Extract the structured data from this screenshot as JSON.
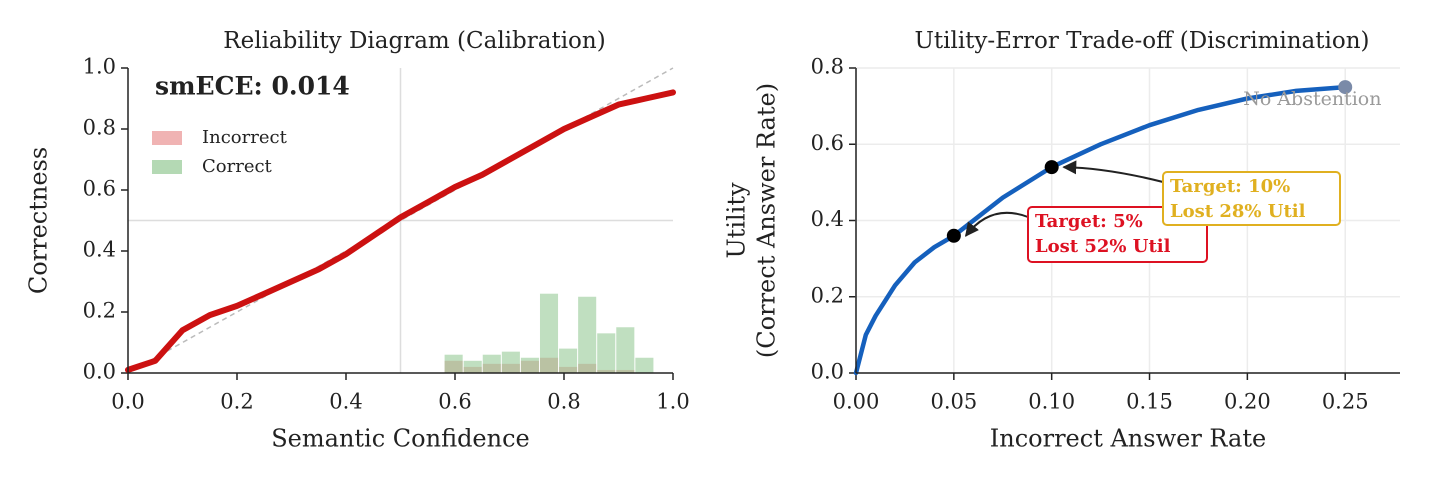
{
  "chart_data": [
    {
      "type": "line",
      "title": "Reliability Diagram (Calibration)",
      "annotation": "smECE: 0.014",
      "xlabel": "Semantic Confidence",
      "ylabel": "Correctness",
      "xlim": [
        0,
        1
      ],
      "ylim": [
        0,
        1
      ],
      "xticks": [
        {
          "value": 0,
          "label": "0.0"
        },
        0.2,
        0.4,
        0.6,
        0.8,
        {
          "value": 1,
          "label": "1.0"
        }
      ],
      "yticks": [
        {
          "value": 0,
          "label": "0.0"
        },
        0.2,
        0.4,
        0.6,
        0.8,
        {
          "value": 1,
          "label": "1.0"
        }
      ],
      "reference_x": 0.5,
      "reference_y": 0.5,
      "x": [
        0,
        0.05,
        0.1,
        0.15,
        0.2,
        0.25,
        0.3,
        0.35,
        0.4,
        0.45,
        0.5,
        0.55,
        0.6,
        0.65,
        0.7,
        0.75,
        0.8,
        0.85,
        0.9,
        0.95,
        1.0
      ],
      "series": [
        {
          "color": "#cc1111",
          "values": [
            0.01,
            0.04,
            0.14,
            0.19,
            0.22,
            0.26,
            0.3,
            0.34,
            0.39,
            0.45,
            0.51,
            0.56,
            0.61,
            0.65,
            0.7,
            0.75,
            0.8,
            0.84,
            0.88,
            0.9,
            0.92
          ]
        }
      ],
      "histogram": {
        "bins": [
          0.58,
          0.615,
          0.65,
          0.685,
          0.72,
          0.755,
          0.79,
          0.825,
          0.86,
          0.895,
          0.93,
          0.965
        ],
        "series": [
          {
            "name": "Incorrect",
            "color": "#e88a8a",
            "values": [
              0.04,
              0.02,
              0.03,
              0.03,
              0.04,
              0.05,
              0.02,
              0.03,
              0.01,
              0.01,
              0
            ]
          },
          {
            "name": "Correct",
            "color": "#8cc48c",
            "values": [
              0.06,
              0.04,
              0.06,
              0.07,
              0.05,
              0.26,
              0.08,
              0.25,
              0.13,
              0.15,
              0.05
            ]
          }
        ]
      },
      "legend": "upper left"
    },
    {
      "type": "line",
      "title": "Utility-Error Trade-off (Discrimination)",
      "xlabel": "Incorrect Answer Rate",
      "ylabel": [
        "Utility",
        "(Correct Answer Rate)"
      ],
      "xlim": [
        0,
        0.278
      ],
      "ylim": [
        0,
        0.8
      ],
      "xticks": [
        {
          "value": 0,
          "label": "0.00"
        },
        {
          "value": 0.05,
          "label": "0.05"
        },
        {
          "value": 0.1,
          "label": "0.10"
        },
        {
          "value": 0.15,
          "label": "0.15"
        },
        {
          "value": 0.2,
          "label": "0.20"
        },
        {
          "value": 0.25,
          "label": "0.25"
        }
      ],
      "yticks": [
        {
          "value": 0,
          "label": "0.0"
        },
        0.2,
        0.4,
        0.6,
        0.8
      ],
      "grid": true,
      "x": [
        0,
        0.005,
        0.01,
        0.02,
        0.03,
        0.04,
        0.05,
        0.075,
        0.1,
        0.125,
        0.15,
        0.175,
        0.2,
        0.225,
        0.25
      ],
      "series": [
        {
          "color": "#1560bd",
          "values": [
            0,
            0.1,
            0.15,
            0.23,
            0.29,
            0.33,
            0.36,
            0.46,
            0.54,
            0.6,
            0.65,
            0.69,
            0.72,
            0.74,
            0.75
          ]
        }
      ],
      "points": [
        {
          "x": 0.05,
          "y": 0.36,
          "color": "#000000"
        },
        {
          "x": 0.1,
          "y": 0.54,
          "color": "#000000"
        },
        {
          "x": 0.25,
          "y": 0.75,
          "color": "#7a8aa8",
          "label": "No Abstention"
        }
      ],
      "annotations": [
        {
          "point": 0,
          "color": "#dd1122",
          "lines": [
            "Target: 5%",
            "Lost 52% Util"
          ]
        },
        {
          "point": 1,
          "color": "#e0b020",
          "lines": [
            "Target: 10%",
            "Lost 28% Util"
          ]
        }
      ]
    }
  ]
}
